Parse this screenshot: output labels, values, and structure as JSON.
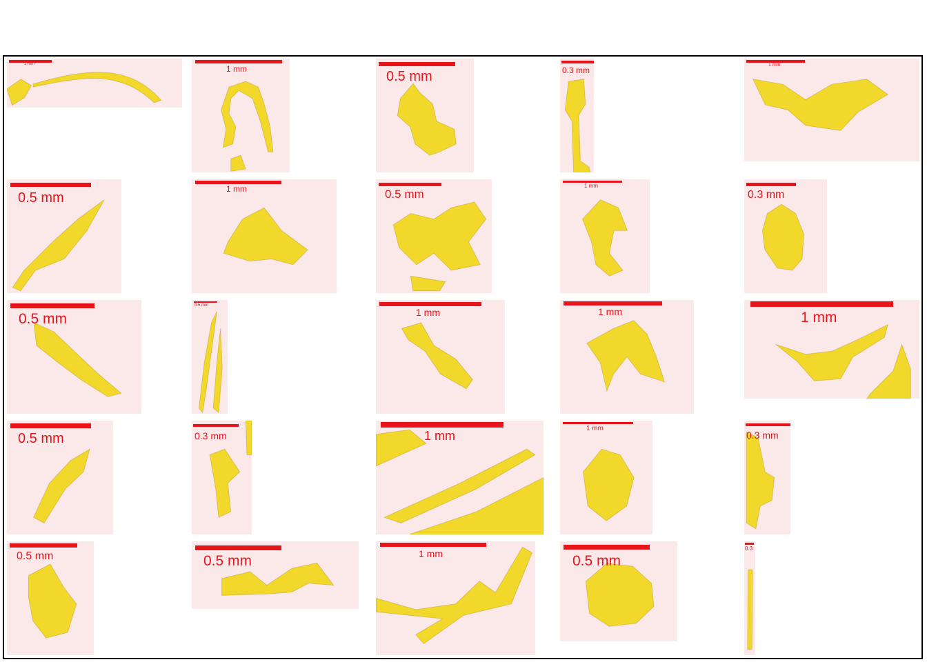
{
  "colors": {
    "background": "#fbe9ea",
    "particle": "#f0d61a",
    "particle_dark": "#a8860f",
    "scale_bar": "#e8141b",
    "border": "#000000"
  },
  "panels": [
    {
      "label": "1 mm"
    },
    {
      "label": "1 mm"
    },
    {
      "label": "0.5 mm"
    },
    {
      "label": "0.3 mm"
    },
    {
      "label": "1 mm"
    },
    {
      "label": "0.5 mm"
    },
    {
      "label": "1 mm"
    },
    {
      "label": "0.5 mm"
    },
    {
      "label": "1 mm"
    },
    {
      "label": "0.3 mm"
    },
    {
      "label": "0.5 mm"
    },
    {
      "label": "0.5 mm"
    },
    {
      "label": "1 mm"
    },
    {
      "label": "1 mm"
    },
    {
      "label": "1 mm"
    },
    {
      "label": "0.5 mm"
    },
    {
      "label": "0.3 mm"
    },
    {
      "label": "1 mm"
    },
    {
      "label": "1 mm"
    },
    {
      "label": "0.3 mm"
    },
    {
      "label": "0.5 mm"
    },
    {
      "label": "0.5 mm"
    },
    {
      "label": "1 mm"
    },
    {
      "label": "0.5 mm"
    },
    {
      "label": "0.3"
    }
  ]
}
